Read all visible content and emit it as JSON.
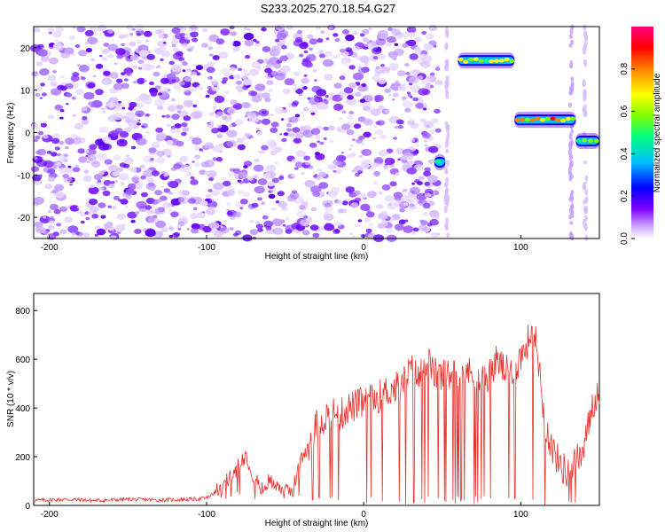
{
  "title": "S233.2025.270.18.54.G27",
  "chart_data": [
    {
      "type": "heatmap",
      "xlabel": "Height of straight line (km)",
      "ylabel": "Frequency (Hz)",
      "xlim": [
        -210,
        150
      ],
      "ylim": [
        -25,
        25
      ],
      "xticks": [
        -200,
        -100,
        0,
        100
      ],
      "yticks": [
        -20,
        -10,
        0,
        10,
        20
      ],
      "colorbar": {
        "label": "Normalized spectral amplitude",
        "range": [
          0,
          1
        ],
        "ticks": [
          "0.0",
          "0.2",
          "0.4",
          "0.6",
          "0.8"
        ],
        "colors": [
          "#ffffff",
          "#c8a0ff",
          "#7f00ff",
          "#0000ff",
          "#00bfff",
          "#00ff80",
          "#7fff00",
          "#ffff00",
          "#ff8000",
          "#ff0000",
          "#ff0080"
        ]
      },
      "signal_segments": [
        {
          "x": [
            45,
            52
          ],
          "freq": -7,
          "amplitude": 0.35
        },
        {
          "x": [
            60,
            96
          ],
          "freq": 17,
          "amplitude": 0.6
        },
        {
          "x": [
            96,
            135
          ],
          "freq": 3,
          "amplitude": 0.75
        },
        {
          "x": [
            135,
            150
          ],
          "freq": -2,
          "amplitude": 0.45
        }
      ]
    },
    {
      "type": "line",
      "xlabel": "Height of straight line (km)",
      "ylabel": "SNR (10 * v/v)",
      "xlim": [
        -210,
        150
      ],
      "ylim": [
        0,
        870
      ],
      "xticks": [
        -200,
        -100,
        0,
        100
      ],
      "yticks": [
        0,
        200,
        400,
        600,
        800
      ],
      "color": "#e8302a",
      "x": [
        -210,
        -190,
        -170,
        -150,
        -130,
        -110,
        -100,
        -90,
        -80,
        -75,
        -70,
        -65,
        -60,
        -55,
        -50,
        -45,
        -40,
        -35,
        -30,
        -25,
        -20,
        -15,
        -10,
        -5,
        0,
        5,
        10,
        15,
        20,
        25,
        30,
        35,
        40,
        45,
        50,
        55,
        60,
        65,
        70,
        75,
        80,
        85,
        90,
        95,
        100,
        105,
        108,
        112,
        115,
        120,
        125,
        130,
        135,
        140,
        145,
        150
      ],
      "y": [
        20,
        25,
        20,
        25,
        22,
        25,
        30,
        70,
        160,
        210,
        120,
        60,
        100,
        90,
        50,
        70,
        180,
        250,
        330,
        360,
        380,
        370,
        400,
        410,
        420,
        430,
        450,
        470,
        480,
        500,
        560,
        520,
        600,
        540,
        530,
        540,
        530,
        560,
        520,
        510,
        540,
        600,
        550,
        540,
        610,
        680,
        740,
        560,
        350,
        230,
        170,
        130,
        180,
        220,
        400,
        480
      ]
    }
  ]
}
